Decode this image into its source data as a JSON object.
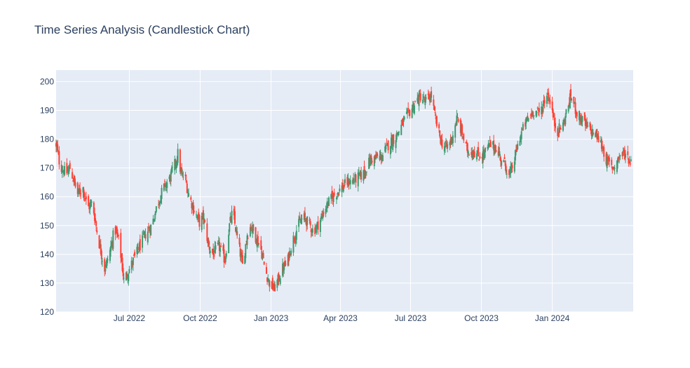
{
  "chart_data": {
    "type": "candlestick",
    "title": "Time Series Analysis (Candlestick Chart)",
    "xlabel": "",
    "ylabel": "",
    "x_range": [
      "2022-03-28",
      "2024-04-15"
    ],
    "ylim": [
      120,
      204
    ],
    "y_ticks": [
      120,
      130,
      140,
      150,
      160,
      170,
      180,
      190,
      200
    ],
    "x_ticks": [
      {
        "date": "2022-07-01",
        "label": "Jul 2022"
      },
      {
        "date": "2022-10-01",
        "label": "Oct 2022"
      },
      {
        "date": "2023-01-01",
        "label": "Jan 2023"
      },
      {
        "date": "2023-04-01",
        "label": "Apr 2023"
      },
      {
        "date": "2023-07-01",
        "label": "Jul 2023"
      },
      {
        "date": "2023-10-01",
        "label": "Oct 2023"
      },
      {
        "date": "2024-01-01",
        "label": "Jan 2024"
      }
    ],
    "increasing_color": "#3d9970",
    "decreasing_color": "#ff4136",
    "plot_background": "#e5ecf6",
    "grid": true,
    "close_path": [
      [
        "2022-03-28",
        178
      ],
      [
        "2022-04-02",
        171
      ],
      [
        "2022-04-10",
        168
      ],
      [
        "2022-04-15",
        170
      ],
      [
        "2022-04-25",
        161
      ],
      [
        "2022-05-02",
        163
      ],
      [
        "2022-05-08",
        156
      ],
      [
        "2022-05-14",
        158
      ],
      [
        "2022-05-22",
        145
      ],
      [
        "2022-05-30",
        135
      ],
      [
        "2022-06-05",
        140
      ],
      [
        "2022-06-12",
        149
      ],
      [
        "2022-06-18",
        144
      ],
      [
        "2022-06-24",
        131
      ],
      [
        "2022-07-03",
        136
      ],
      [
        "2022-07-08",
        139
      ],
      [
        "2022-07-15",
        143
      ],
      [
        "2022-07-22",
        147
      ],
      [
        "2022-07-30",
        150
      ],
      [
        "2022-08-06",
        157
      ],
      [
        "2022-08-14",
        163
      ],
      [
        "2022-08-22",
        166
      ],
      [
        "2022-08-30",
        172
      ],
      [
        "2022-09-02",
        175
      ],
      [
        "2022-09-06",
        168
      ],
      [
        "2022-09-12",
        166
      ],
      [
        "2022-09-15",
        162
      ],
      [
        "2022-09-22",
        156
      ],
      [
        "2022-09-30",
        151
      ],
      [
        "2022-10-05",
        153
      ],
      [
        "2022-10-12",
        143
      ],
      [
        "2022-10-18",
        140
      ],
      [
        "2022-10-25",
        143
      ],
      [
        "2022-11-02",
        138
      ],
      [
        "2022-11-08",
        150
      ],
      [
        "2022-11-12",
        155
      ],
      [
        "2022-11-18",
        146
      ],
      [
        "2022-11-25",
        136
      ],
      [
        "2022-12-01",
        147
      ],
      [
        "2022-12-06",
        150
      ],
      [
        "2022-12-12",
        146
      ],
      [
        "2022-12-18",
        143
      ],
      [
        "2022-12-24",
        135
      ],
      [
        "2022-12-30",
        130
      ],
      [
        "2023-01-05",
        128
      ],
      [
        "2023-01-10",
        131
      ],
      [
        "2023-01-16",
        135
      ],
      [
        "2023-01-22",
        137
      ],
      [
        "2023-01-28",
        144
      ],
      [
        "2023-02-05",
        150
      ],
      [
        "2023-02-12",
        153
      ],
      [
        "2023-02-18",
        151
      ],
      [
        "2023-02-25",
        148
      ],
      [
        "2023-03-02",
        150
      ],
      [
        "2023-03-08",
        153
      ],
      [
        "2023-03-14",
        157
      ],
      [
        "2023-03-22",
        160
      ],
      [
        "2023-04-02",
        163
      ],
      [
        "2023-04-10",
        165
      ],
      [
        "2023-04-20",
        166
      ],
      [
        "2023-05-01",
        168
      ],
      [
        "2023-05-10",
        173
      ],
      [
        "2023-05-25",
        174
      ],
      [
        "2023-06-02",
        178
      ],
      [
        "2023-06-12",
        181
      ],
      [
        "2023-06-22",
        186
      ],
      [
        "2023-07-01",
        190
      ],
      [
        "2023-07-08",
        193
      ],
      [
        "2023-07-14",
        195
      ],
      [
        "2023-07-20",
        193
      ],
      [
        "2023-07-28",
        195
      ],
      [
        "2023-08-03",
        186
      ],
      [
        "2023-08-10",
        179
      ],
      [
        "2023-08-16",
        177
      ],
      [
        "2023-08-22",
        179
      ],
      [
        "2023-08-30",
        187
      ],
      [
        "2023-09-06",
        182
      ],
      [
        "2023-09-12",
        176
      ],
      [
        "2023-09-20",
        176
      ],
      [
        "2023-09-28",
        174
      ],
      [
        "2023-10-05",
        175
      ],
      [
        "2023-10-12",
        178
      ],
      [
        "2023-10-20",
        177
      ],
      [
        "2023-10-25",
        174
      ],
      [
        "2023-11-01",
        171
      ],
      [
        "2023-11-06",
        167
      ],
      [
        "2023-11-12",
        172
      ],
      [
        "2023-11-20",
        181
      ],
      [
        "2023-11-28",
        186
      ],
      [
        "2023-12-08",
        190
      ],
      [
        "2023-12-15",
        189
      ],
      [
        "2023-12-20",
        192
      ],
      [
        "2023-12-25",
        196
      ],
      [
        "2023-12-30",
        193
      ],
      [
        "2024-01-03",
        186
      ],
      [
        "2024-01-08",
        183
      ],
      [
        "2024-01-15",
        185
      ],
      [
        "2024-01-25",
        195
      ],
      [
        "2024-02-02",
        189
      ],
      [
        "2024-02-10",
        186
      ],
      [
        "2024-02-18",
        183
      ],
      [
        "2024-02-26",
        182
      ],
      [
        "2024-03-05",
        178
      ],
      [
        "2024-03-12",
        172
      ],
      [
        "2024-03-20",
        170
      ],
      [
        "2024-03-28",
        174
      ],
      [
        "2024-04-05",
        175
      ],
      [
        "2024-04-12",
        172
      ]
    ]
  }
}
